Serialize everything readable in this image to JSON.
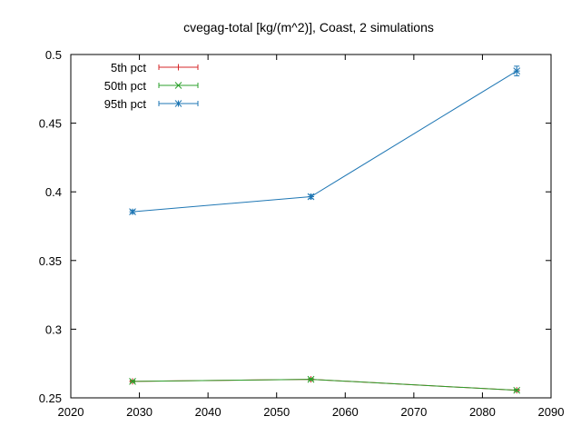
{
  "chart_data": {
    "type": "line",
    "title": "cvegag-total [kg/(m^2)], Coast, 2 simulations",
    "xlabel": "",
    "ylabel": "",
    "xlim": [
      2020,
      2090
    ],
    "ylim": [
      0.25,
      0.5
    ],
    "xticks": [
      2020,
      2030,
      2040,
      2050,
      2060,
      2070,
      2080,
      2090
    ],
    "yticks": [
      0.25,
      0.3,
      0.35,
      0.4,
      0.45,
      0.5
    ],
    "xtick_labels": [
      "2020",
      "2030",
      "2040",
      "2050",
      "2060",
      "2070",
      "2080",
      "2090"
    ],
    "ytick_labels": [
      "0.25",
      "0.3",
      "0.35",
      "0.4",
      "0.45",
      "0.5"
    ],
    "grid": false,
    "legend_position": "top-left",
    "x": [
      2029,
      2055,
      2085
    ],
    "series": [
      {
        "name": "5th pct",
        "color": "#d62728",
        "marker": "plus",
        "values": [
          0.262,
          0.2635,
          0.2555
        ],
        "err": [
          0.0007,
          0.0008,
          0.0008
        ]
      },
      {
        "name": "50th pct",
        "color": "#2ca02c",
        "marker": "cross",
        "values": [
          0.262,
          0.2635,
          0.2555
        ],
        "err": [
          0.0007,
          0.0008,
          0.0008
        ]
      },
      {
        "name": "95th pct",
        "color": "#1f77b4",
        "marker": "star",
        "values": [
          0.3855,
          0.3965,
          0.488
        ],
        "err": [
          0.0012,
          0.0015,
          0.0035
        ]
      }
    ]
  }
}
